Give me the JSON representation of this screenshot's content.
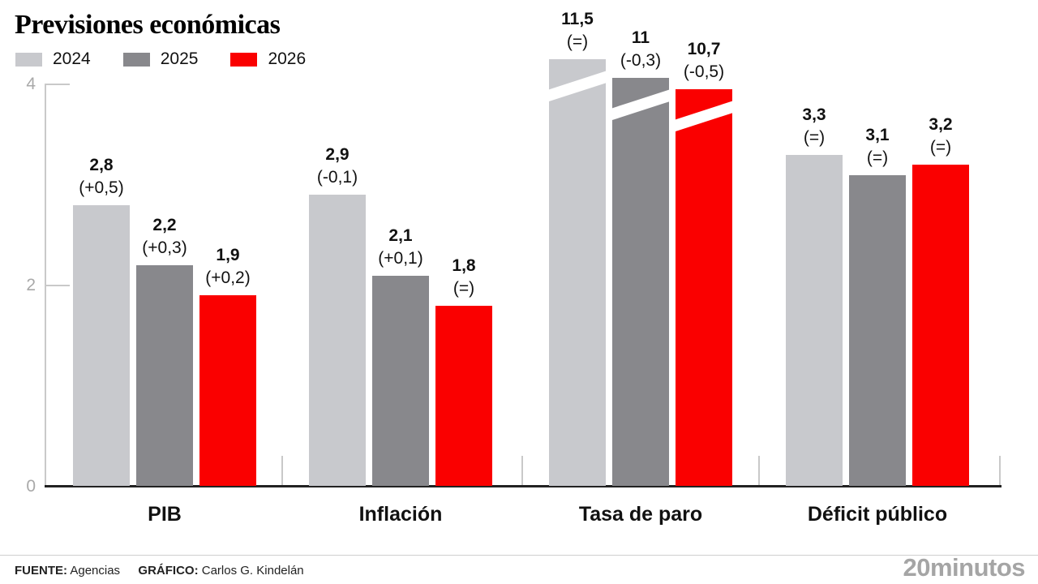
{
  "title": "Previsiones económicas",
  "legend": [
    {
      "label": "2024",
      "color": "#c8c9cd"
    },
    {
      "label": "2025",
      "color": "#88888c"
    },
    {
      "label": "2026",
      "color": "#fa0000"
    }
  ],
  "chart_data": {
    "type": "bar",
    "title": "Previsiones económicas",
    "categories": [
      "PIB",
      "Inflación",
      "Tasa de paro",
      "Déficit público"
    ],
    "series": [
      {
        "name": "2024",
        "color": "#c8c9cd",
        "values": [
          2.8,
          2.9,
          11.5,
          3.3
        ],
        "display": [
          "2,8",
          "2,9",
          "11,5",
          "3,3"
        ],
        "changes": [
          "(+0,5)",
          "(-0,1)",
          "(=)",
          "(=)"
        ]
      },
      {
        "name": "2025",
        "color": "#88888c",
        "values": [
          2.2,
          2.1,
          11,
          3.1
        ],
        "display": [
          "2,2",
          "2,1",
          "11",
          "3,1"
        ],
        "changes": [
          "(+0,3)",
          "(+0,1)",
          "(-0,3)",
          "(=)"
        ]
      },
      {
        "name": "2026",
        "color": "#fa0000",
        "values": [
          1.9,
          1.8,
          10.7,
          3.2
        ],
        "display": [
          "1,9",
          "1,8",
          "10,7",
          "3,2"
        ],
        "changes": [
          "(+0,2)",
          "(=)",
          "(-0,5)",
          "(=)"
        ]
      }
    ],
    "yticks": [
      0,
      2,
      4
    ],
    "ytick_labels": [
      "0",
      "2",
      "4"
    ],
    "ylim": [
      0,
      4
    ],
    "grid": false,
    "legend_position": "top-left",
    "broken_axis_note": "Tasa de paro bars exceed the 0-4 scale and are drawn truncated with a diagonal white break"
  },
  "footer": {
    "source_label": "FUENTE",
    "source": "Agencias",
    "graphic_label": "GRÁFICO",
    "graphic": "Carlos G. Kindelán",
    "brand": "20minutos"
  }
}
